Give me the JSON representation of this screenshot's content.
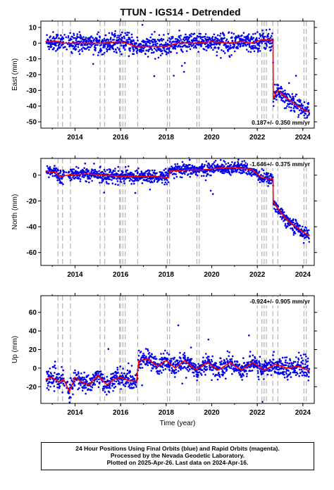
{
  "title": "TTUN - IGS14 - Detrended",
  "colors": {
    "points": "#0000ee",
    "model": "#ff0000",
    "offsets": "#b4b4b4",
    "frame": "#000000"
  },
  "footer": {
    "line1": "24 Hour Positions Using Final Orbits (blue) and Rapid Orbits (magenta).",
    "line2": "Processed by the Nevada Geodetic Laboratory.",
    "line3": "Plotted on 2025-Apr-26. Last data on 2024-Apr-16."
  },
  "chart_data": [
    {
      "type": "scatter",
      "ylabel": "East (mm)",
      "xlabel": "",
      "xlim": [
        2012.5,
        2024.5
      ],
      "ylim": [
        -54,
        14
      ],
      "xticks": [
        2014,
        2016,
        2018,
        2020,
        2022,
        2024
      ],
      "yticks": [
        10,
        0,
        -10,
        -20,
        -30,
        -40,
        -50
      ],
      "rate_text": "0.187+/- 0.350 mm/yr",
      "rate_position": "bottom-right",
      "grid": false,
      "series": [
        {
          "model_x": [
            2012.7,
            2013.3,
            2013.45,
            2013.8,
            2014.5,
            2015.3,
            2016.0,
            2016.7,
            2017.5,
            2018.0,
            2018.5,
            2019.3,
            2020.0,
            2020.7,
            2021.3,
            2021.7,
            2022.2,
            2022.6,
            2022.69,
            2022.7,
            2022.9,
            2023.3,
            2023.7,
            2024.0,
            2024.3
          ],
          "model_y": [
            1,
            1,
            0,
            0,
            0,
            0,
            1,
            -2,
            -2,
            -2,
            0,
            0,
            1,
            0,
            1,
            0,
            2,
            2,
            2,
            -35,
            -30,
            -35,
            -39,
            -42,
            -44
          ],
          "scatter_sd": 3
        }
      ]
    },
    {
      "type": "scatter",
      "ylabel": "North (mm)",
      "xlabel": "",
      "xlim": [
        2012.5,
        2024.5
      ],
      "ylim": [
        -70,
        13
      ],
      "xticks": [
        2014,
        2016,
        2018,
        2020,
        2022,
        2024
      ],
      "yticks": [
        0,
        -20,
        -40,
        -60
      ],
      "rate_text": "-1.646+/- 0.375 mm/yr",
      "rate_position": "top-right",
      "grid": false,
      "series": [
        {
          "model_x": [
            2012.7,
            2013.2,
            2013.3,
            2013.7,
            2014.5,
            2015.3,
            2016.0,
            2016.7,
            2017.5,
            2018.1,
            2018.15,
            2019.0,
            2019.6,
            2020.0,
            2020.8,
            2021.5,
            2021.8,
            2022.0,
            2022.2,
            2022.6,
            2022.69,
            2022.7,
            2023.0,
            2023.3,
            2023.7,
            2024.0,
            2024.3
          ],
          "model_y": [
            3,
            2,
            -1,
            0,
            1,
            0,
            -1,
            -1,
            -1,
            -2,
            3,
            4,
            4,
            5,
            6,
            5,
            4,
            1,
            -2,
            -3,
            -3,
            -21,
            -28,
            -35,
            -40,
            -44,
            -47
          ],
          "scatter_sd": 2.5
        }
      ]
    },
    {
      "type": "scatter",
      "ylabel": "Up (mm)",
      "xlabel": "Time (year)",
      "xlim": [
        2012.5,
        2024.5
      ],
      "ylim": [
        -38,
        78
      ],
      "xticks": [
        2014,
        2016,
        2018,
        2020,
        2022,
        2024
      ],
      "yticks": [
        60,
        40,
        20,
        0,
        -20
      ],
      "rate_text": "-0.924+/- 0.905 mm/yr",
      "rate_position": "top-right",
      "grid": false,
      "series": [
        {
          "model_x": [
            2012.7,
            2013.0,
            2013.3,
            2013.5,
            2013.75,
            2014.0,
            2014.3,
            2014.6,
            2015.0,
            2015.4,
            2015.7,
            2016.0,
            2016.4,
            2016.7,
            2016.8,
            2017.2,
            2017.6,
            2018.0,
            2018.4,
            2018.8,
            2019.3,
            2019.8,
            2020.3,
            2020.8,
            2021.3,
            2021.8,
            2022.3,
            2022.8,
            2023.3,
            2023.8,
            2024.3
          ],
          "model_y": [
            -12,
            -10,
            -15,
            -12,
            -25,
            -10,
            -15,
            -18,
            -8,
            -18,
            -12,
            -10,
            -14,
            -14,
            8,
            10,
            2,
            8,
            0,
            8,
            -2,
            6,
            -2,
            6,
            -2,
            6,
            -2,
            4,
            0,
            2,
            -3
          ],
          "scatter_sd": 5
        }
      ]
    }
  ],
  "offset_lines": [
    2013.25,
    2013.45,
    2013.8,
    2015.1,
    2015.3,
    2015.95,
    2016.0,
    2016.1,
    2016.2,
    2016.75,
    2018.05,
    2018.15,
    2019.35,
    2019.45,
    2022.0,
    2022.2,
    2022.3,
    2022.4,
    2022.68,
    2022.9,
    2024.05,
    2024.15
  ]
}
